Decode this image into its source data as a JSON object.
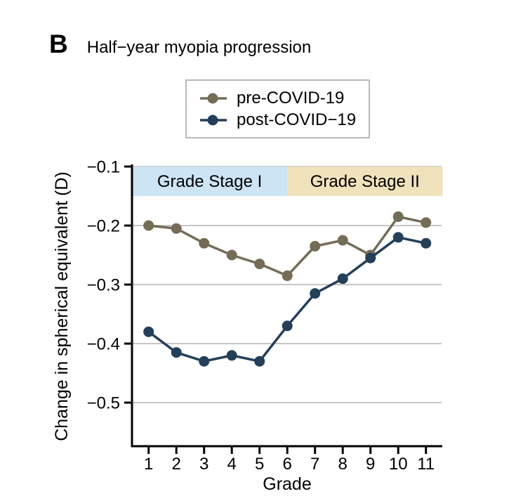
{
  "panel": {
    "label": "B",
    "title": "Half−year myopia progression"
  },
  "legend": {
    "items": [
      {
        "label": "pre-COVID-19",
        "color": "#746c57"
      },
      {
        "label": "post-COVID−19",
        "color": "#243f5a"
      }
    ],
    "border_color": "#b9b9b9"
  },
  "chart_data": {
    "type": "line",
    "x": [
      1,
      2,
      3,
      4,
      5,
      6,
      7,
      8,
      9,
      10,
      11
    ],
    "series": [
      {
        "name": "pre-COVID-19",
        "color": "#746c57",
        "values": [
          -0.2,
          -0.205,
          -0.23,
          -0.25,
          -0.265,
          -0.285,
          -0.235,
          -0.225,
          -0.25,
          -0.185,
          -0.195
        ]
      },
      {
        "name": "post-COVID−19",
        "color": "#243f5a",
        "values": [
          -0.38,
          -0.415,
          -0.43,
          -0.42,
          -0.43,
          -0.37,
          -0.315,
          -0.29,
          -0.255,
          -0.22,
          -0.23
        ]
      }
    ],
    "xlabel": "Grade",
    "ylabel": "Change in spherical equivalent (D)",
    "xtick_labels": [
      "1",
      "2",
      "3",
      "4",
      "5",
      "6",
      "7",
      "8",
      "9",
      "10",
      "11"
    ],
    "yticks": [
      "−0.1",
      "−0.2",
      "−0.3",
      "−0.4",
      "−0.5"
    ],
    "ytick_values": [
      -0.1,
      -0.2,
      -0.3,
      -0.4,
      -0.5
    ],
    "ylim": [
      -0.575,
      -0.1
    ],
    "xlim": [
      0.4,
      11.6
    ],
    "grid": "horizontal",
    "gridline_color": "#c6c6c6",
    "axis_color": "#000000",
    "legend_position": "top",
    "bands": [
      {
        "label": "Grade Stage I",
        "color": "#cde4f5",
        "from_x": 0.4,
        "to_x": 6.0
      },
      {
        "label": "Grade Stage II",
        "color": "#f0e2bb",
        "from_x": 6.0,
        "to_x": 11.6
      }
    ]
  }
}
